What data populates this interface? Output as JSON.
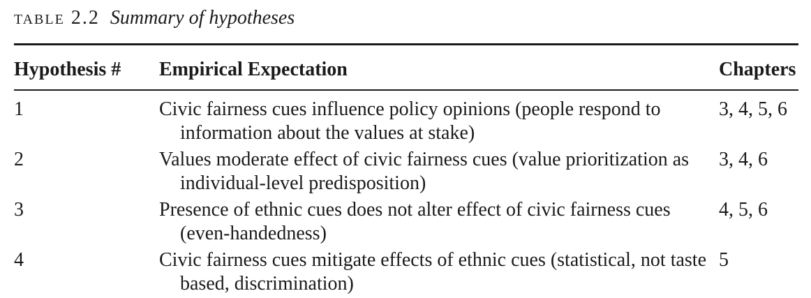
{
  "table": {
    "label": "TABLE 2.2",
    "title": "Summary of hypotheses",
    "headers": {
      "hypothesis": "Hypothesis #",
      "expectation": "Empirical Expectation",
      "chapters": "Chapters"
    },
    "rows": [
      {
        "number": "1",
        "expectation": "Civic fairness cues influence policy opinions (people respond to information about the values at stake)",
        "chapters": "3, 4, 5, 6"
      },
      {
        "number": "2",
        "expectation": "Values moderate effect of civic fairness cues (value prioritization as individual-level predisposition)",
        "chapters": "3, 4, 6"
      },
      {
        "number": "3",
        "expectation": "Presence of ethnic cues does not alter effect of civic fairness cues (even-handedness)",
        "chapters": "4, 5, 6"
      },
      {
        "number": "4",
        "expectation": "Civic fairness cues mitigate effects of ethnic cues (statistical, not taste based, discrimination)",
        "chapters": "5"
      }
    ]
  }
}
